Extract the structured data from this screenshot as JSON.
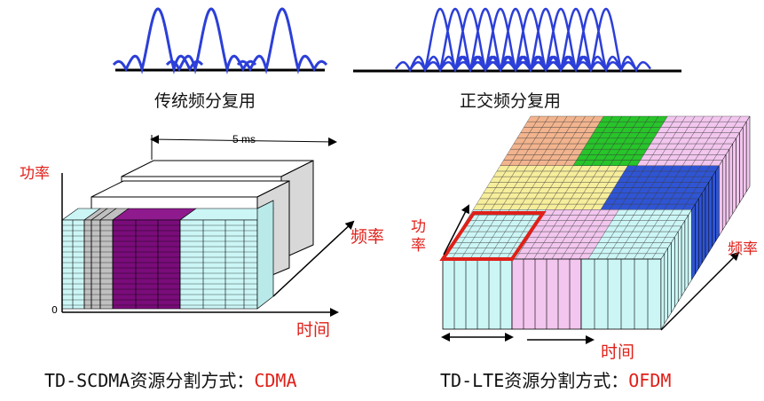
{
  "top": {
    "fdm_caption": "传统频分复用",
    "ofdm_caption": "正交频分复用"
  },
  "cdma": {
    "duration_label": "5 ms",
    "power_label": "功率",
    "freq_label": "频率",
    "time_label": "时间",
    "origin_label": "0",
    "caption_prefix": "TD-SCDMA资源分割方式：",
    "caption_method": "CDMA"
  },
  "ofdm": {
    "power_label": "功\n率",
    "freq_label": "频率",
    "time_label": "时间",
    "caption_prefix": "TD-LTE资源分割方式：",
    "caption_method": "OFDM"
  },
  "colors": {
    "wave": "#2c3fd8",
    "accent_red": "#e0201a",
    "cyan": "#ccf6f6",
    "purple": "#7a0c7a",
    "gray": "#c0c0c0",
    "pink": "#f2c6ee",
    "green": "#27c42a",
    "blue": "#2f55d4",
    "yellow": "#f7ee9c",
    "salmon": "#f2b48e"
  }
}
